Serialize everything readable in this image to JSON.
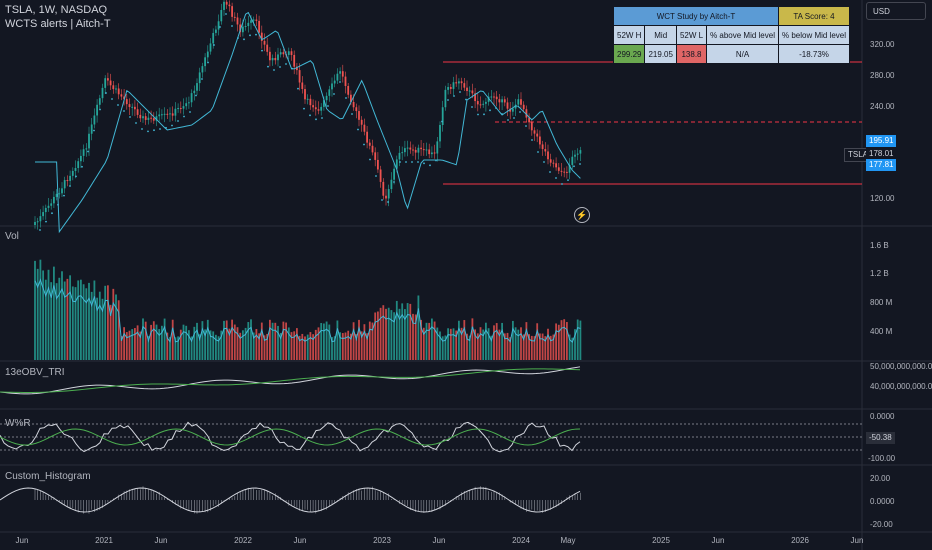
{
  "header": {
    "symbol_line": "TSLA, 1W, NASDAQ",
    "indicator_line": "WCTS alerts | Aitch-T",
    "currency": "USD"
  },
  "wct_table": {
    "title": "WCT Study by Aitch-T",
    "ta_score": "TA Score: 4",
    "headers": [
      "52W H",
      "Mid",
      "52W L",
      "% above Mid level",
      "% below Mid level"
    ],
    "values": [
      "299.29",
      "219.05",
      "138.8",
      "N/A",
      "-18.73%"
    ]
  },
  "price_axis": {
    "ticks": [
      "320.00",
      "280.00",
      "240.00",
      "195.91",
      "178.01",
      "177.81",
      "120.00"
    ],
    "symbol_tag": "TSLA"
  },
  "panes": {
    "volume": {
      "label": "Vol",
      "ticks": [
        "1.6 B",
        "1.2 B",
        "800 M",
        "400 M"
      ]
    },
    "obv": {
      "label": "13eOBV_TRI",
      "ticks": [
        "50,000,000,000.00",
        "40,000,000,000.00"
      ]
    },
    "williams": {
      "label": "W%R",
      "ticks": [
        "0.0000",
        "-50.38",
        "-100.00"
      ]
    },
    "histogram": {
      "label": "Custom_Histogram",
      "ticks": [
        "20.00",
        "0.0000",
        "-20.00"
      ]
    }
  },
  "time_axis": [
    "Jun",
    "2021",
    "Jun",
    "2022",
    "Jun",
    "2023",
    "Jun",
    "2024",
    "May",
    "2025",
    "Jun",
    "2026",
    "Jun"
  ],
  "colors": {
    "background": "#131722",
    "up": "#26a69a",
    "down": "#ef5350",
    "ma": "#42b8d6",
    "level": "#f23645",
    "tag_blue": "#2196f3"
  },
  "icons": {
    "replay": "bolt-icon"
  }
}
